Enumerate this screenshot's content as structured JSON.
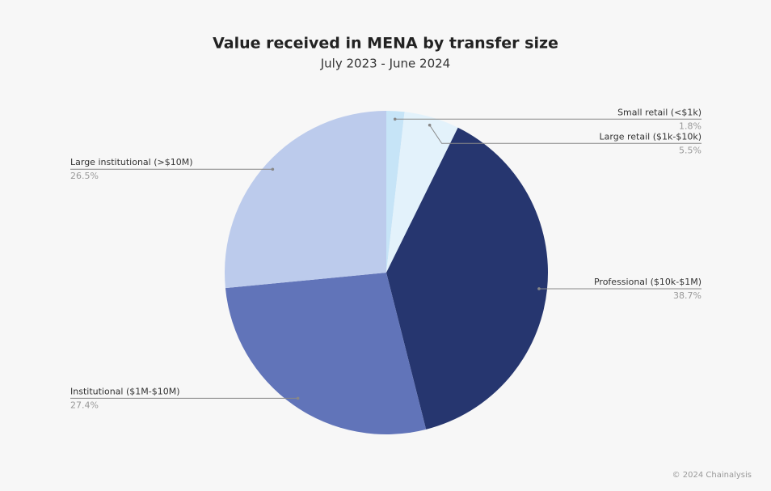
{
  "chart_data": {
    "type": "pie",
    "title": "Value received in MENA by transfer size",
    "subtitle": "July 2023 - June 2024",
    "categories": [
      "Small retail (<$1k)",
      "Large retail ($1k-$10k)",
      "Professional ($10k-$1M)",
      "Institutional ($1M-$10M)",
      "Large institutional (>$10M)"
    ],
    "values": [
      1.8,
      5.5,
      38.7,
      27.4,
      26.5
    ],
    "value_labels": [
      "1.8%",
      "5.5%",
      "38.7%",
      "27.4%",
      "26.5%"
    ],
    "colors": [
      "#c6e4f7",
      "#e3f2fb",
      "#26366f",
      "#6174b9",
      "#bccbec"
    ],
    "source": "© 2024 Chainalysis"
  }
}
